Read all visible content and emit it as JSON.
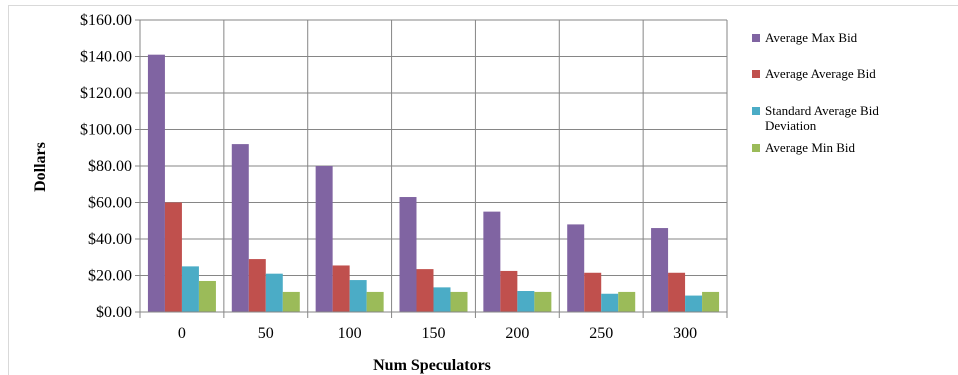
{
  "chart_data": {
    "type": "bar",
    "title": "",
    "xlabel": "Num Speculators",
    "ylabel": "Dollars",
    "categories": [
      "0",
      "50",
      "100",
      "150",
      "200",
      "250",
      "300"
    ],
    "ylim": [
      0,
      160
    ],
    "yticks": [
      0,
      20,
      40,
      60,
      80,
      100,
      120,
      140,
      160
    ],
    "ytick_labels": [
      "$0.00",
      "$20.00",
      "$40.00",
      "$60.00",
      "$80.00",
      "$100.00",
      "$120.00",
      "$140.00",
      "$160.00"
    ],
    "grid": true,
    "legend_position": "right",
    "series": [
      {
        "name": "Average Max Bid",
        "color": "#8064a2",
        "values": [
          141,
          92,
          80,
          63,
          55,
          48,
          46
        ]
      },
      {
        "name": "Average Average Bid",
        "color": "#c0504d",
        "values": [
          60,
          29,
          25.5,
          23.5,
          22.5,
          21.5,
          21.5
        ]
      },
      {
        "name": "Standard Average Bid Deviation",
        "legend_lines": [
          "Standard Average Bid",
          "Deviation"
        ],
        "color": "#4bacc6",
        "values": [
          25,
          21,
          17.5,
          13.5,
          11.5,
          10,
          9
        ]
      },
      {
        "name": "Average Min Bid",
        "color": "#9bbb59",
        "values": [
          17,
          11,
          11,
          11,
          11,
          11,
          11
        ]
      }
    ]
  }
}
